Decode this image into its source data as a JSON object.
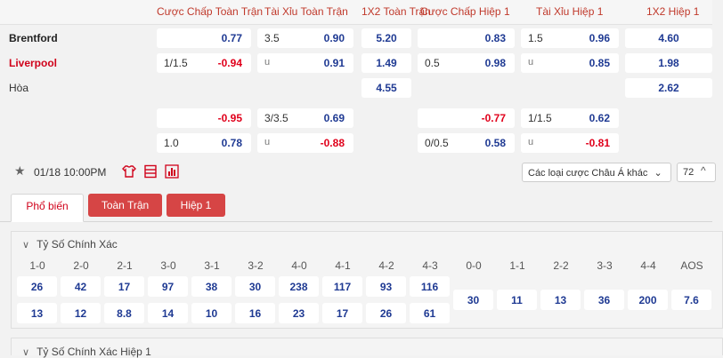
{
  "headers": [
    "Cược Chấp Toàn Trận",
    "Tài Xỉu Toàn Trận",
    "1X2 Toàn Trận",
    "Cược Chấp Hiệp 1",
    "Tài Xỉu Hiệp 1",
    "1X2 Hiệp 1"
  ],
  "teams": {
    "home": "Brentford",
    "away": "Liverpool",
    "draw": "Hòa"
  },
  "market1": {
    "row1": {
      "ah_odds": "0.77",
      "ou_line": "3.5",
      "ou_odds": "0.90",
      "x12": "5.20",
      "h1_ah_odds": "0.83",
      "h1_ou_line": "1.5",
      "h1_ou_odds": "0.96",
      "h1_x12": "4.60"
    },
    "row2": {
      "ah_line": "1/1.5",
      "ah_odds": "-0.94",
      "ou_line": "u",
      "ou_odds": "0.91",
      "x12": "1.49",
      "h1_ah_line": "0.5",
      "h1_ah_odds": "0.98",
      "h1_ou_line": "u",
      "h1_ou_odds": "0.85",
      "h1_x12": "1.98"
    },
    "row3": {
      "x12": "4.55",
      "h1_x12": "2.62"
    }
  },
  "market2": {
    "row1": {
      "ah_odds": "-0.95",
      "ou_line": "3/3.5",
      "ou_odds": "0.69",
      "h1_ah_odds": "-0.77",
      "h1_ou_line": "1/1.5",
      "h1_ou_odds": "0.62"
    },
    "row2": {
      "ah_line": "1.0",
      "ah_odds": "0.78",
      "ou_line": "u",
      "ou_odds": "-0.88",
      "h1_ah_line": "0/0.5",
      "h1_ah_odds": "0.58",
      "h1_ou_line": "u",
      "h1_ou_odds": "-0.81"
    }
  },
  "toolbar": {
    "datetime": "01/18 10:00PM",
    "select_label": "Các loại cược Châu Á khác",
    "select_chevron": "⌄",
    "count": "72",
    "count_chevron": "^"
  },
  "tabs": [
    "Phổ biến",
    "Toàn Trận",
    "Hiệp 1"
  ],
  "correct_score": {
    "title": "Tỷ Số Chính Xác",
    "scores": [
      "1-0",
      "2-0",
      "2-1",
      "3-0",
      "3-1",
      "3-2",
      "4-0",
      "4-1",
      "4-2",
      "4-3",
      "0-0",
      "1-1",
      "2-2",
      "3-3",
      "4-4",
      "AOS"
    ],
    "home_odds": [
      "26",
      "42",
      "17",
      "97",
      "38",
      "30",
      "238",
      "117",
      "93",
      "116"
    ],
    "away_odds": [
      "13",
      "12",
      "8.8",
      "14",
      "10",
      "16",
      "23",
      "17",
      "26",
      "61"
    ],
    "draw_odds": [
      "30",
      "11",
      "13",
      "36",
      "200",
      "7.6"
    ]
  },
  "correct_score_h1": {
    "title": "Tỷ Số Chính Xác Hiệp 1"
  }
}
